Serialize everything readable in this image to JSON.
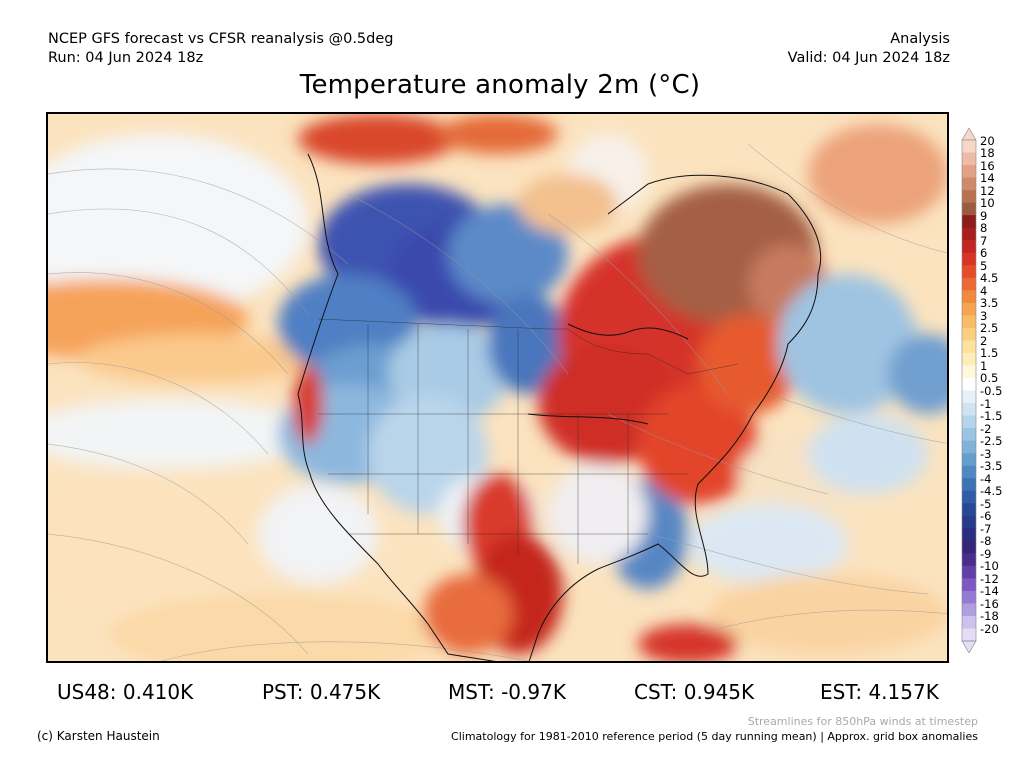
{
  "header": {
    "left_line1": "NCEP GFS forecast vs CFSR reanalysis @0.5deg",
    "left_line2": "Run: 04 Jun 2024 18z",
    "right_line1": "Analysis",
    "right_line2": "Valid: 04 Jun 2024 18z"
  },
  "title": "Temperature anomaly 2m (°C)",
  "colorbar": {
    "labels": [
      "20",
      "18",
      "16",
      "14",
      "12",
      "10",
      "9",
      "8",
      "7",
      "6",
      "5",
      "4.5",
      "4",
      "3.5",
      "3",
      "2.5",
      "2",
      "1.5",
      "1",
      "0.5",
      "-0.5",
      "-1",
      "-1.5",
      "-2",
      "-2.5",
      "-3",
      "-3.5",
      "-4",
      "-4.5",
      "-5",
      "-6",
      "-7",
      "-8",
      "-9",
      "-10",
      "-12",
      "-14",
      "-16",
      "-18",
      "-20"
    ],
    "colors": [
      "#f7d8c8",
      "#eebca6",
      "#e2a184",
      "#cf8a6a",
      "#b97152",
      "#9c5a42",
      "#8c1d1a",
      "#a81f1d",
      "#c32622",
      "#d83324",
      "#e44c2a",
      "#ec6a31",
      "#f18a3d",
      "#f5a452",
      "#f8bb67",
      "#fbcf80",
      "#fde19c",
      "#fdeeb9",
      "#fef8dd",
      "#ffffff",
      "#e6f0f7",
      "#cfe3f0",
      "#b6d5ea",
      "#9ac5e2",
      "#7fb2d8",
      "#649fce",
      "#4f89c1",
      "#3d72b3",
      "#2f5ca6",
      "#284897",
      "#283a8a",
      "#2b2d80",
      "#352678",
      "#4a2c8d",
      "#6340a8",
      "#7c58c2",
      "#957ad4",
      "#b09ee2",
      "#cbc2ee",
      "#e3ddf7"
    ]
  },
  "stats": [
    {
      "label": "US48: 0.410K"
    },
    {
      "label": "PST: 0.475K"
    },
    {
      "label": "MST: -0.97K"
    },
    {
      "label": "CST: 0.945K"
    },
    {
      "label": "EST: 4.157K"
    }
  ],
  "footer": {
    "credit": "(c) Karsten Haustein",
    "streamline_note": "Streamlines for 850hPa winds at timestep",
    "climatology_note": "Climatology for 1981-2010 reference period (5 day running mean) | Approx. grid box anomalies"
  }
}
